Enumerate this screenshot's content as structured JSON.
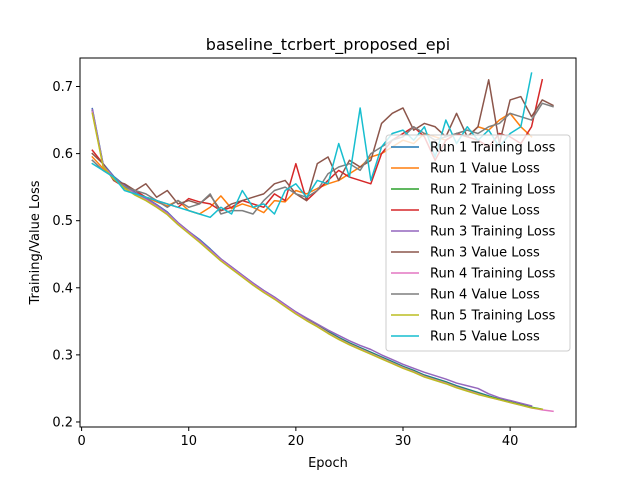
{
  "chart_data": {
    "type": "line",
    "title": "baseline_tcrbert_proposed_epi",
    "xlabel": "Epoch",
    "ylabel": "Training/Value Loss",
    "xlim": [
      -0.15,
      46.15
    ],
    "ylim": [
      0.1925,
      0.7425
    ],
    "xticks": [
      0,
      10,
      20,
      30,
      40
    ],
    "yticks": [
      0.2,
      0.3,
      0.4,
      0.5,
      0.6,
      0.7
    ],
    "grid": false,
    "legend_position": "center-right",
    "series": [
      {
        "name": "Run 1 Training Loss",
        "color": "#1f77b4",
        "x": [
          1,
          2,
          3,
          4,
          5,
          6,
          7,
          8,
          9,
          10,
          11,
          12,
          13,
          14,
          15,
          16,
          17,
          18,
          19,
          20,
          21,
          22,
          23,
          24,
          25,
          26,
          27,
          28,
          29,
          30,
          31,
          32,
          33,
          34,
          35,
          36,
          37,
          38,
          39,
          40,
          41,
          42
        ],
        "y": [
          0.667,
          0.585,
          0.566,
          0.553,
          0.542,
          0.534,
          0.524,
          0.513,
          0.497,
          0.484,
          0.472,
          0.458,
          0.443,
          0.431,
          0.419,
          0.407,
          0.396,
          0.386,
          0.375,
          0.364,
          0.354,
          0.345,
          0.335,
          0.326,
          0.318,
          0.311,
          0.304,
          0.297,
          0.29,
          0.283,
          0.277,
          0.27,
          0.265,
          0.26,
          0.254,
          0.249,
          0.244,
          0.239,
          0.234,
          0.23,
          0.226,
          0.222
        ]
      },
      {
        "name": "Run 1 Value Loss",
        "color": "#ff7f0e",
        "x": [
          1,
          2,
          3,
          4,
          5,
          6,
          7,
          8,
          9,
          10,
          11,
          12,
          13,
          14,
          15,
          16,
          17,
          18,
          19,
          20,
          21,
          22,
          23,
          24,
          25,
          26,
          27,
          28,
          29,
          30,
          31,
          32,
          33,
          34,
          35,
          36,
          37,
          38,
          39,
          40,
          41,
          42
        ],
        "y": [
          0.595,
          0.578,
          0.565,
          0.548,
          0.54,
          0.535,
          0.528,
          0.522,
          0.53,
          0.515,
          0.51,
          0.52,
          0.537,
          0.518,
          0.525,
          0.52,
          0.512,
          0.53,
          0.528,
          0.545,
          0.54,
          0.548,
          0.555,
          0.56,
          0.57,
          0.58,
          0.595,
          0.6,
          0.61,
          0.62,
          0.615,
          0.63,
          0.625,
          0.62,
          0.63,
          0.625,
          0.64,
          0.635,
          0.65,
          0.66,
          0.64,
          0.625
        ]
      },
      {
        "name": "Run 2 Training Loss",
        "color": "#2ca02c",
        "x": [
          1,
          2,
          3,
          4,
          5,
          6,
          7,
          8,
          9,
          10,
          11,
          12,
          13,
          14,
          15,
          16,
          17,
          18,
          19,
          20,
          21,
          22,
          23,
          24,
          25,
          26,
          27,
          28,
          29,
          30,
          31,
          32,
          33,
          34,
          35,
          36,
          37,
          38,
          39,
          40,
          41,
          42,
          43
        ],
        "y": [
          0.664,
          0.583,
          0.564,
          0.551,
          0.54,
          0.532,
          0.522,
          0.511,
          0.496,
          0.483,
          0.47,
          0.456,
          0.442,
          0.43,
          0.418,
          0.406,
          0.395,
          0.385,
          0.374,
          0.363,
          0.353,
          0.344,
          0.334,
          0.325,
          0.317,
          0.31,
          0.303,
          0.296,
          0.289,
          0.282,
          0.276,
          0.269,
          0.264,
          0.259,
          0.253,
          0.248,
          0.243,
          0.238,
          0.234,
          0.23,
          0.226,
          0.222,
          0.219
        ]
      },
      {
        "name": "Run 2 Value Loss",
        "color": "#d62728",
        "x": [
          1,
          2,
          3,
          4,
          5,
          6,
          7,
          8,
          9,
          10,
          11,
          12,
          13,
          14,
          15,
          16,
          17,
          18,
          19,
          20,
          21,
          22,
          23,
          24,
          25,
          26,
          27,
          28,
          29,
          30,
          31,
          32,
          33,
          34,
          35,
          36,
          37,
          38,
          39,
          40,
          41,
          42,
          43
        ],
        "y": [
          0.605,
          0.585,
          0.56,
          0.55,
          0.545,
          0.535,
          0.53,
          0.525,
          0.52,
          0.533,
          0.528,
          0.525,
          0.515,
          0.52,
          0.53,
          0.525,
          0.52,
          0.54,
          0.53,
          0.585,
          0.53,
          0.545,
          0.56,
          0.575,
          0.565,
          0.56,
          0.555,
          0.6,
          0.62,
          0.63,
          0.64,
          0.625,
          0.59,
          0.62,
          0.63,
          0.625,
          0.62,
          0.61,
          0.63,
          0.625,
          0.615,
          0.64,
          0.71
        ]
      },
      {
        "name": "Run 3 Training Loss",
        "color": "#9467bd",
        "x": [
          1,
          2,
          3,
          4,
          5,
          6,
          7,
          8,
          9,
          10,
          11,
          12,
          13,
          14,
          15,
          16,
          17,
          18,
          19,
          20,
          21,
          22,
          23,
          24,
          25,
          26,
          27,
          28,
          29,
          30,
          31,
          32,
          33,
          34,
          35,
          36,
          37,
          38,
          39,
          40,
          41,
          42
        ],
        "y": [
          0.666,
          0.584,
          0.565,
          0.552,
          0.541,
          0.533,
          0.523,
          0.512,
          0.497,
          0.484,
          0.471,
          0.457,
          0.443,
          0.431,
          0.419,
          0.407,
          0.396,
          0.386,
          0.375,
          0.364,
          0.355,
          0.346,
          0.337,
          0.329,
          0.321,
          0.314,
          0.308,
          0.3,
          0.293,
          0.286,
          0.28,
          0.274,
          0.269,
          0.264,
          0.258,
          0.254,
          0.25,
          0.242,
          0.236,
          0.232,
          0.228,
          0.224
        ]
      },
      {
        "name": "Run 3 Value Loss",
        "color": "#8c564b",
        "x": [
          1,
          2,
          3,
          4,
          5,
          6,
          7,
          8,
          9,
          10,
          11,
          12,
          13,
          14,
          15,
          16,
          17,
          18,
          19,
          20,
          21,
          22,
          23,
          24,
          25,
          26,
          27,
          28,
          29,
          30,
          31,
          32,
          33,
          34,
          35,
          36,
          37,
          38,
          39,
          40,
          41,
          42,
          43,
          44
        ],
        "y": [
          0.6,
          0.585,
          0.56,
          0.555,
          0.545,
          0.555,
          0.535,
          0.545,
          0.525,
          0.53,
          0.525,
          0.538,
          0.515,
          0.525,
          0.53,
          0.535,
          0.54,
          0.555,
          0.56,
          0.54,
          0.53,
          0.585,
          0.595,
          0.56,
          0.59,
          0.58,
          0.59,
          0.645,
          0.66,
          0.668,
          0.635,
          0.645,
          0.64,
          0.625,
          0.66,
          0.625,
          0.64,
          0.71,
          0.615,
          0.68,
          0.685,
          0.655,
          0.68,
          0.672
        ]
      },
      {
        "name": "Run 4 Training Loss",
        "color": "#e377c2",
        "x": [
          1,
          2,
          3,
          4,
          5,
          6,
          7,
          8,
          9,
          10,
          11,
          12,
          13,
          14,
          15,
          16,
          17,
          18,
          19,
          20,
          21,
          22,
          23,
          24,
          25,
          26,
          27,
          28,
          29,
          30,
          31,
          32,
          33,
          34,
          35,
          36,
          37,
          38,
          39,
          40,
          41,
          42,
          43,
          44
        ],
        "y": [
          0.662,
          0.582,
          0.563,
          0.55,
          0.539,
          0.531,
          0.521,
          0.51,
          0.495,
          0.482,
          0.469,
          0.455,
          0.441,
          0.429,
          0.417,
          0.405,
          0.394,
          0.384,
          0.373,
          0.362,
          0.352,
          0.343,
          0.333,
          0.324,
          0.316,
          0.309,
          0.302,
          0.295,
          0.288,
          0.281,
          0.275,
          0.268,
          0.263,
          0.258,
          0.252,
          0.247,
          0.242,
          0.237,
          0.233,
          0.229,
          0.225,
          0.221,
          0.218,
          0.216
        ]
      },
      {
        "name": "Run 4 Value Loss",
        "color": "#7f7f7f",
        "x": [
          1,
          2,
          3,
          4,
          5,
          6,
          7,
          8,
          9,
          10,
          11,
          12,
          13,
          14,
          15,
          16,
          17,
          18,
          19,
          20,
          21,
          22,
          23,
          24,
          25,
          26,
          27,
          28,
          29,
          30,
          31,
          32,
          33,
          34,
          35,
          36,
          37,
          38,
          39,
          40,
          41,
          42,
          43,
          44
        ],
        "y": [
          0.59,
          0.575,
          0.565,
          0.55,
          0.545,
          0.54,
          0.53,
          0.52,
          0.53,
          0.52,
          0.525,
          0.54,
          0.51,
          0.515,
          0.515,
          0.51,
          0.53,
          0.545,
          0.55,
          0.54,
          0.535,
          0.545,
          0.57,
          0.58,
          0.585,
          0.575,
          0.6,
          0.61,
          0.62,
          0.625,
          0.64,
          0.63,
          0.62,
          0.625,
          0.63,
          0.635,
          0.63,
          0.64,
          0.645,
          0.66,
          0.655,
          0.65,
          0.675,
          0.67
        ]
      },
      {
        "name": "Run 5 Training Loss",
        "color": "#bcbd22",
        "x": [
          1,
          2,
          3,
          4,
          5,
          6,
          7,
          8,
          9,
          10,
          11,
          12,
          13,
          14,
          15,
          16,
          17,
          18,
          19,
          20,
          21,
          22,
          23,
          24,
          25,
          26,
          27,
          28,
          29,
          30,
          31,
          32,
          33,
          34,
          35,
          36,
          37,
          38,
          39,
          40,
          41,
          42,
          43
        ],
        "y": [
          0.66,
          0.581,
          0.562,
          0.549,
          0.538,
          0.53,
          0.52,
          0.509,
          0.494,
          0.481,
          0.468,
          0.454,
          0.44,
          0.428,
          0.416,
          0.404,
          0.393,
          0.383,
          0.372,
          0.361,
          0.351,
          0.342,
          0.332,
          0.323,
          0.315,
          0.308,
          0.301,
          0.294,
          0.287,
          0.28,
          0.274,
          0.267,
          0.262,
          0.257,
          0.251,
          0.246,
          0.241,
          0.237,
          0.233,
          0.229,
          0.225,
          0.221,
          0.219
        ]
      },
      {
        "name": "Run 5 Value Loss",
        "color": "#17becf",
        "x": [
          1,
          2,
          3,
          4,
          5,
          6,
          7,
          8,
          9,
          10,
          11,
          12,
          13,
          14,
          15,
          16,
          17,
          18,
          19,
          20,
          21,
          22,
          23,
          24,
          25,
          26,
          27,
          28,
          29,
          30,
          31,
          32,
          33,
          34,
          35,
          36,
          37,
          38,
          39,
          40,
          41,
          42
        ],
        "y": [
          0.585,
          0.575,
          0.565,
          0.545,
          0.54,
          0.535,
          0.53,
          0.525,
          0.52,
          0.515,
          0.51,
          0.505,
          0.52,
          0.51,
          0.545,
          0.52,
          0.525,
          0.51,
          0.545,
          0.555,
          0.535,
          0.56,
          0.555,
          0.615,
          0.565,
          0.668,
          0.56,
          0.61,
          0.63,
          0.635,
          0.62,
          0.64,
          0.595,
          0.65,
          0.615,
          0.64,
          0.62,
          0.635,
          0.61,
          0.63,
          0.64,
          0.72
        ]
      }
    ]
  }
}
